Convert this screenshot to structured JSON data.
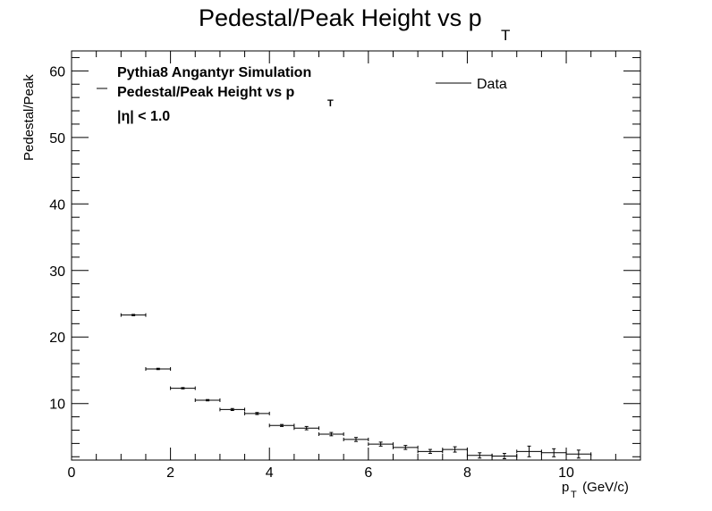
{
  "chart_data": {
    "type": "scatter",
    "title": "Pedestal/Peak Height vs p",
    "title_subscript": "T",
    "xlabel": "p",
    "xlabel_subscript": "T",
    "xlabel_unit": " (GeV/c)",
    "ylabel": "Pedestal/Peak",
    "xlim": [
      0,
      11.5
    ],
    "ylim": [
      1.5,
      63
    ],
    "x_ticks": [
      "0",
      "2",
      "4",
      "6",
      "8",
      "10"
    ],
    "y_ticks": [
      "10",
      "20",
      "30",
      "40",
      "50",
      "60"
    ],
    "grid": false,
    "legend": {
      "placement": "top-right",
      "entries": [
        "Data"
      ]
    },
    "annotations": {
      "line1": "Pythia8 Angantyr Simulation",
      "line2": "Pedestal/Peak Height vs p",
      "line2_subscript": "T",
      "line3": "|η| < 1.0"
    },
    "series": [
      {
        "name": "Data",
        "points": [
          {
            "x": 1.25,
            "xerr": 0.25,
            "y": 23.3,
            "yerr": 0.1
          },
          {
            "x": 1.75,
            "xerr": 0.25,
            "y": 15.2,
            "yerr": 0.1
          },
          {
            "x": 2.25,
            "xerr": 0.25,
            "y": 12.3,
            "yerr": 0.1
          },
          {
            "x": 2.75,
            "xerr": 0.25,
            "y": 10.5,
            "yerr": 0.1
          },
          {
            "x": 3.25,
            "xerr": 0.25,
            "y": 9.1,
            "yerr": 0.15
          },
          {
            "x": 3.75,
            "xerr": 0.25,
            "y": 8.5,
            "yerr": 0.15
          },
          {
            "x": 4.25,
            "xerr": 0.25,
            "y": 6.7,
            "yerr": 0.15
          },
          {
            "x": 4.75,
            "xerr": 0.25,
            "y": 6.3,
            "yerr": 0.25
          },
          {
            "x": 5.25,
            "xerr": 0.25,
            "y": 5.4,
            "yerr": 0.25
          },
          {
            "x": 5.75,
            "xerr": 0.25,
            "y": 4.6,
            "yerr": 0.3
          },
          {
            "x": 6.25,
            "xerr": 0.25,
            "y": 3.9,
            "yerr": 0.3
          },
          {
            "x": 6.75,
            "xerr": 0.25,
            "y": 3.4,
            "yerr": 0.3
          },
          {
            "x": 7.25,
            "xerr": 0.25,
            "y": 2.8,
            "yerr": 0.3
          },
          {
            "x": 7.75,
            "xerr": 0.25,
            "y": 3.1,
            "yerr": 0.4
          },
          {
            "x": 8.25,
            "xerr": 0.25,
            "y": 2.2,
            "yerr": 0.4
          },
          {
            "x": 8.75,
            "xerr": 0.25,
            "y": 2.1,
            "yerr": 0.4
          },
          {
            "x": 9.25,
            "xerr": 0.25,
            "y": 2.8,
            "yerr": 0.8
          },
          {
            "x": 9.75,
            "xerr": 0.25,
            "y": 2.6,
            "yerr": 0.6
          },
          {
            "x": 10.25,
            "xerr": 0.25,
            "y": 2.4,
            "yerr": 0.6
          }
        ]
      }
    ]
  }
}
